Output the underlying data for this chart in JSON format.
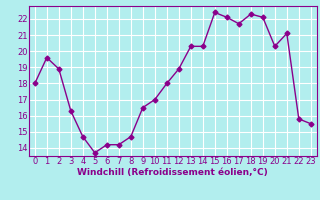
{
  "x": [
    0,
    1,
    2,
    3,
    4,
    5,
    6,
    7,
    8,
    9,
    10,
    11,
    12,
    13,
    14,
    15,
    16,
    17,
    18,
    19,
    20,
    21,
    22,
    23
  ],
  "y": [
    18.0,
    19.6,
    18.9,
    16.3,
    14.7,
    13.7,
    14.2,
    14.2,
    14.7,
    16.5,
    17.0,
    18.0,
    18.9,
    20.3,
    20.3,
    22.4,
    22.1,
    21.7,
    22.3,
    22.1,
    20.3,
    21.1,
    15.8,
    15.5
  ],
  "line_color": "#8b008b",
  "marker": "D",
  "markersize": 2.5,
  "linewidth": 1.0,
  "bg_color": "#b2eeee",
  "grid_color": "#ffffff",
  "xlabel": "Windchill (Refroidissement éolien,°C)",
  "xlabel_fontsize": 6.5,
  "ylabel_ticks": [
    14,
    15,
    16,
    17,
    18,
    19,
    20,
    21,
    22
  ],
  "xtick_labels": [
    "0",
    "1",
    "2",
    "3",
    "4",
    "5",
    "6",
    "7",
    "8",
    "9",
    "10",
    "11",
    "12",
    "13",
    "14",
    "15",
    "16",
    "17",
    "18",
    "19",
    "20",
    "21",
    "22",
    "23"
  ],
  "ylim": [
    13.5,
    22.8
  ],
  "xlim": [
    -0.5,
    23.5
  ],
  "tick_fontsize": 6.0
}
